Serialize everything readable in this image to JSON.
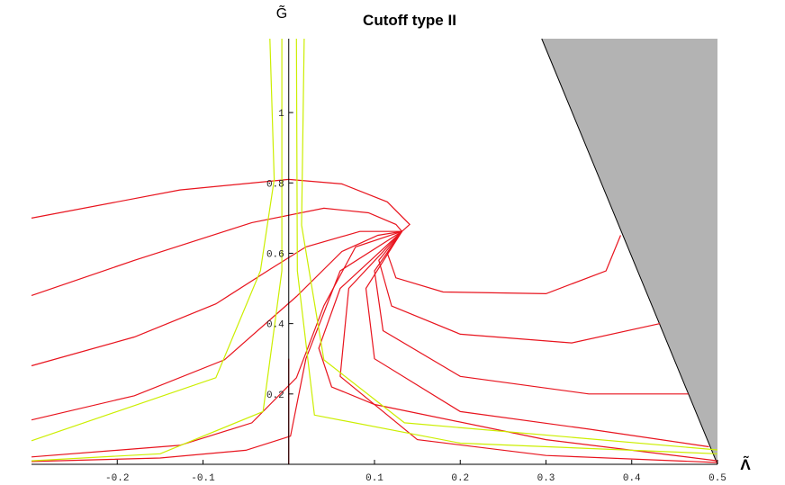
{
  "chart_data": {
    "type": "line",
    "title": "Cutoff type II",
    "x_label": "Λ̃",
    "y_label": "G̃",
    "xlim": [
      -0.3,
      0.5
    ],
    "ylim": [
      0,
      1.21
    ],
    "xticks": [
      -0.2,
      -0.1,
      0.1,
      0.2,
      0.3,
      0.4,
      0.5
    ],
    "yticks": [
      0.2,
      0.4,
      0.6,
      0.8,
      1
    ],
    "region": {
      "color": "#b3b3b3",
      "x": [
        0.295,
        0.5
      ],
      "values": [
        1.21,
        0
      ]
    },
    "series": [
      {
        "color": "#e8141e",
        "x": [
          -0.3,
          -0.127,
          0,
          0.062,
          0.115,
          0.141,
          0.132
        ],
        "values": [
          0.7,
          0.78,
          0.81,
          0.797,
          0.746,
          0.682,
          0.662
        ]
      },
      {
        "color": "#e8141e",
        "x": [
          -0.3,
          -0.18,
          -0.043,
          0.041,
          0.093,
          0.125,
          0.132
        ],
        "values": [
          0.48,
          0.58,
          0.687,
          0.728,
          0.715,
          0.682,
          0.662
        ]
      },
      {
        "color": "#e8141e",
        "x": [
          -0.3,
          -0.18,
          -0.085,
          -0.022,
          0.02,
          0.083,
          0.132
        ],
        "values": [
          0.28,
          0.362,
          0.456,
          0.554,
          0.618,
          0.662,
          0.662
        ]
      },
      {
        "color": "#e8141e",
        "x": [
          -0.3,
          -0.18,
          -0.075,
          0.009,
          0.062,
          0.104,
          0.132
        ],
        "values": [
          0.126,
          0.195,
          0.297,
          0.477,
          0.605,
          0.651,
          0.662
        ]
      },
      {
        "color": "#e8141e",
        "x": [
          -0.3,
          -0.127,
          -0.043,
          0.009,
          0.041,
          0.078,
          0.132
        ],
        "values": [
          0.021,
          0.054,
          0.118,
          0.246,
          0.451,
          0.618,
          0.662
        ]
      },
      {
        "color": "#e8141e",
        "x": [
          -0.3,
          -0.15,
          -0.05,
          0.002,
          0.02,
          0.06,
          0.132
        ],
        "values": [
          0.008,
          0.018,
          0.04,
          0.08,
          0.3,
          0.55,
          0.662
        ]
      },
      {
        "color": "#e8141e",
        "x": [
          0,
          0
        ],
        "values": [
          0,
          0.3
        ]
      },
      {
        "color": "#e8141e",
        "x": [
          0.132,
          0.06,
          0.035,
          0.05,
          0.1,
          0.3,
          0.5
        ],
        "values": [
          0.662,
          0.5,
          0.33,
          0.22,
          0.17,
          0.07,
          0.01
        ]
      },
      {
        "color": "#e8141e",
        "x": [
          0.132,
          0.115,
          0.125,
          0.18,
          0.3,
          0.37,
          0.387
        ],
        "values": [
          0.662,
          0.6,
          0.53,
          0.49,
          0.485,
          0.55,
          0.651
        ]
      },
      {
        "color": "#e8141e",
        "x": [
          0.132,
          0.105,
          0.12,
          0.2,
          0.33,
          0.433
        ],
        "values": [
          0.662,
          0.58,
          0.45,
          0.37,
          0.345,
          0.4
        ]
      },
      {
        "color": "#e8141e",
        "x": [
          0.132,
          0.1,
          0.11,
          0.2,
          0.35,
          0.466
        ],
        "values": [
          0.662,
          0.55,
          0.38,
          0.25,
          0.2,
          0.2
        ]
      },
      {
        "color": "#e8141e",
        "x": [
          0.132,
          0.09,
          0.1,
          0.2,
          0.35,
          0.49
        ],
        "values": [
          0.662,
          0.5,
          0.3,
          0.15,
          0.1,
          0.05
        ]
      },
      {
        "color": "#e8141e",
        "x": [
          0.132,
          0.07,
          0.06,
          0.15,
          0.3,
          0.5
        ],
        "values": [
          0.662,
          0.5,
          0.25,
          0.07,
          0.025,
          0.005
        ]
      },
      {
        "color": "#ccee00",
        "x": [
          -0.022,
          -0.017,
          -0.033,
          -0.085,
          -0.3
        ],
        "values": [
          1.21,
          0.81,
          0.55,
          0.246,
          0.067
        ]
      },
      {
        "color": "#ccee00",
        "x": [
          -0.008,
          -0.008,
          -0.03,
          -0.15,
          -0.3
        ],
        "values": [
          1.21,
          0.55,
          0.15,
          0.03,
          0.01
        ]
      },
      {
        "color": "#ccee00",
        "x": [
          0.018,
          0.015,
          0.041,
          0.135,
          0.5
        ],
        "values": [
          1.21,
          0.68,
          0.297,
          0.118,
          0.041
        ]
      },
      {
        "color": "#ccee00",
        "x": [
          0.009,
          0.01,
          0.03,
          0.2,
          0.5
        ],
        "values": [
          1.21,
          0.55,
          0.14,
          0.06,
          0.03
        ]
      }
    ]
  }
}
